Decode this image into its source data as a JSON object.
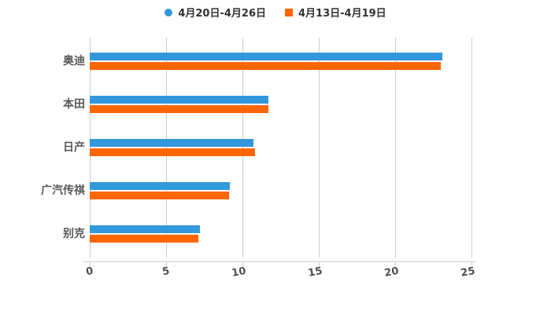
{
  "chart_data": {
    "type": "bar",
    "orientation": "horizontal",
    "title": "",
    "xlabel": "",
    "ylabel": "",
    "grid": true,
    "legend_position": "top",
    "xlim": [
      0,
      25
    ],
    "xticks": [
      0,
      5,
      10,
      15,
      20,
      25
    ],
    "categories": [
      "奥迪",
      "本田",
      "日产",
      "广汽传祺",
      "别克"
    ],
    "series": [
      {
        "name": "4月20日-4月26日",
        "color": "#3398DB",
        "marker": "circle",
        "values": [
          23.1,
          11.7,
          10.7,
          9.2,
          7.2
        ]
      },
      {
        "name": "4月13日-4月19日",
        "color": "#FF6600",
        "marker": "square",
        "values": [
          23.0,
          11.7,
          10.8,
          9.1,
          7.1
        ]
      }
    ]
  },
  "colors": {
    "background": "#ffffff",
    "gridline": "#cccccc",
    "axis_line": "#cccccc",
    "tick_label": "#4d4d4d",
    "category_label": "#595959",
    "legend_label": "#333333",
    "series_blue": "#3398DB",
    "series_orange": "#FF6600"
  }
}
